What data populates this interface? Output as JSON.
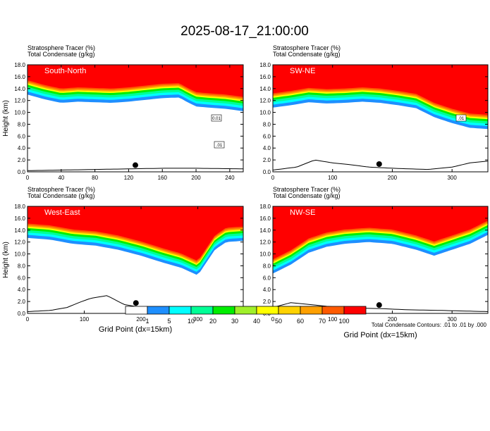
{
  "title": "2025-08-17_21:00:00",
  "colors": {
    "scale": [
      "#ffffff",
      "#1e8fff",
      "#00ffff",
      "#00ff96",
      "#00ee00",
      "#a0f02a",
      "#ffff00",
      "#ffd200",
      "#ffa000",
      "#ff5a00",
      "#ff0000"
    ]
  },
  "footnote": "Total Condensate Contours: .01 to .01 by .000",
  "chart_data": [
    {
      "type": "heatmap",
      "panel_label": "South-North",
      "subtitle_line1": "Stratosphere Tracer   (%)",
      "subtitle_line2": "Total Condensate   (g/kg)",
      "ylabel": "Height (km)",
      "xlabel": "",
      "xlim": [
        0,
        256
      ],
      "ylim": [
        0,
        18
      ],
      "xticks": [
        0,
        40,
        80,
        120,
        160,
        200,
        240
      ],
      "yticks": [
        0,
        2,
        4,
        6,
        8,
        10,
        12,
        14,
        16,
        18
      ],
      "contour_labels": [
        "0.01",
        ".01"
      ],
      "tracer_base_km": [
        [
          0,
          14.8
        ],
        [
          20,
          14.0
        ],
        [
          40,
          13.4
        ],
        [
          60,
          13.6
        ],
        [
          80,
          13.5
        ],
        [
          100,
          13.4
        ],
        [
          120,
          13.6
        ],
        [
          140,
          13.9
        ],
        [
          160,
          14.2
        ],
        [
          180,
          14.3
        ],
        [
          190,
          13.5
        ],
        [
          200,
          12.8
        ],
        [
          215,
          12.6
        ],
        [
          235,
          12.4
        ],
        [
          256,
          12.0
        ]
      ],
      "terrain_km": [
        [
          0,
          0.2
        ],
        [
          40,
          0.3
        ],
        [
          80,
          0.4
        ],
        [
          120,
          0.5
        ],
        [
          160,
          0.6
        ],
        [
          200,
          0.6
        ],
        [
          256,
          0.5
        ]
      ],
      "marker_x": 128
    },
    {
      "type": "heatmap",
      "panel_label": "SW-NE",
      "subtitle_line1": "Stratosphere Tracer   (%)",
      "subtitle_line2": "Total Condensate   (g/kg)",
      "ylabel": "",
      "xlabel": "",
      "xlim": [
        0,
        360
      ],
      "ylim": [
        0,
        18
      ],
      "xticks": [
        0,
        100,
        200,
        300
      ],
      "yticks": [
        0,
        2,
        4,
        6,
        8,
        10,
        12,
        14,
        16,
        18
      ],
      "contour_labels": [
        ".01"
      ],
      "tracer_base_km": [
        [
          0,
          12.6
        ],
        [
          30,
          13.0
        ],
        [
          60,
          13.5
        ],
        [
          90,
          13.3
        ],
        [
          120,
          13.4
        ],
        [
          150,
          13.6
        ],
        [
          180,
          13.4
        ],
        [
          210,
          13.0
        ],
        [
          240,
          12.5
        ],
        [
          270,
          11.0
        ],
        [
          300,
          10.0
        ],
        [
          330,
          9.2
        ],
        [
          360,
          9.0
        ]
      ],
      "terrain_km": [
        [
          0,
          0.3
        ],
        [
          40,
          0.8
        ],
        [
          70,
          2.0
        ],
        [
          100,
          1.5
        ],
        [
          130,
          1.2
        ],
        [
          160,
          0.8
        ],
        [
          200,
          0.6
        ],
        [
          260,
          0.4
        ],
        [
          300,
          0.8
        ],
        [
          330,
          1.5
        ],
        [
          360,
          1.8
        ]
      ],
      "marker_x": 178
    },
    {
      "type": "heatmap",
      "panel_label": "West-East",
      "subtitle_line1": "Stratosphere Tracer   (%)",
      "subtitle_line2": "Total Condensate   (g/kg)",
      "ylabel": "Height (km)",
      "xlabel": "Grid Point (dx=15km)",
      "xlim": [
        0,
        380
      ],
      "ylim": [
        0,
        18
      ],
      "xticks": [
        0,
        100,
        200,
        300
      ],
      "yticks": [
        0,
        2,
        4,
        6,
        8,
        10,
        12,
        14,
        16,
        18
      ],
      "contour_labels": [],
      "tracer_base_km": [
        [
          0,
          14.5
        ],
        [
          40,
          14.2
        ],
        [
          80,
          13.5
        ],
        [
          120,
          13.2
        ],
        [
          160,
          12.5
        ],
        [
          200,
          11.5
        ],
        [
          240,
          10.3
        ],
        [
          270,
          9.5
        ],
        [
          300,
          8.2
        ],
        [
          330,
          12.5
        ],
        [
          350,
          13.8
        ],
        [
          380,
          14.0
        ]
      ],
      "terrain_km": [
        [
          0,
          0.3
        ],
        [
          40,
          0.5
        ],
        [
          70,
          1.0
        ],
        [
          90,
          1.8
        ],
        [
          110,
          2.5
        ],
        [
          140,
          3.0
        ],
        [
          170,
          1.5
        ],
        [
          200,
          1.0
        ],
        [
          240,
          0.8
        ],
        [
          280,
          0.4
        ],
        [
          330,
          0.3
        ],
        [
          380,
          0.3
        ]
      ],
      "marker_x": 191
    },
    {
      "type": "heatmap",
      "panel_label": "NW-SE",
      "subtitle_line1": "Stratosphere Tracer   (%)",
      "subtitle_line2": "Total Condensate   (g/kg)",
      "ylabel": "",
      "xlabel": "Grid Point (dx=15km)",
      "xlim": [
        0,
        360
      ],
      "ylim": [
        0,
        18
      ],
      "xticks": [
        0,
        100,
        200,
        300
      ],
      "yticks": [
        0,
        2,
        4,
        6,
        8,
        10,
        12,
        14,
        16,
        18
      ],
      "contour_labels": [],
      "tracer_base_km": [
        [
          0,
          8.5
        ],
        [
          30,
          10.0
        ],
        [
          60,
          12.0
        ],
        [
          90,
          13.0
        ],
        [
          120,
          13.5
        ],
        [
          160,
          13.8
        ],
        [
          200,
          13.5
        ],
        [
          240,
          12.5
        ],
        [
          270,
          11.5
        ],
        [
          300,
          12.5
        ],
        [
          330,
          13.5
        ],
        [
          360,
          15.0
        ]
      ],
      "terrain_km": [
        [
          0,
          1.0
        ],
        [
          30,
          1.8
        ],
        [
          60,
          1.5
        ],
        [
          90,
          1.2
        ],
        [
          130,
          0.9
        ],
        [
          180,
          0.8
        ],
        [
          230,
          0.6
        ],
        [
          280,
          0.5
        ],
        [
          360,
          0.3
        ]
      ],
      "marker_x": 178
    }
  ],
  "colorbar": {
    "labels": [
      "1",
      "5",
      "10",
      "20",
      "30",
      "40",
      "50",
      "60",
      "70",
      "100"
    ]
  }
}
